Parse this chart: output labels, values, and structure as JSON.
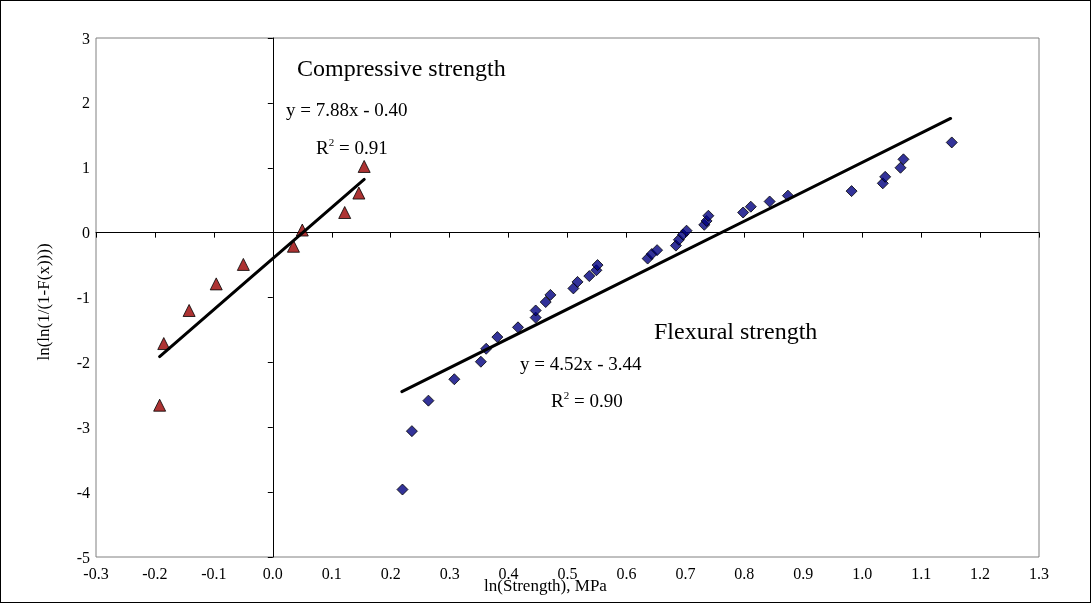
{
  "chart_data": {
    "type": "scatter",
    "xlabel": "ln(Strength), MPa",
    "ylabel": "ln(ln(1/(1-F(x))))",
    "xlim": [
      -0.3,
      1.3
    ],
    "xticks": [
      -0.3,
      -0.2,
      -0.1,
      {
        "value": 0,
        "label": "0.0"
      },
      0.1,
      0.2,
      0.3,
      0.4,
      0.5,
      0.6,
      0.7,
      0.8,
      0.9,
      {
        "value": 1,
        "label": "1.0"
      },
      1.1,
      1.2,
      1.3
    ],
    "ylim": [
      -5,
      3
    ],
    "yticks": [
      -5,
      -4,
      -3,
      -2,
      -1,
      0,
      1,
      2,
      3
    ],
    "series": [
      {
        "marker": "triangle",
        "color": "#990000",
        "x": [
          -0.192,
          -0.185,
          -0.142,
          -0.096,
          -0.05,
          0.035,
          0.05,
          0.122,
          0.146,
          0.155
        ],
        "values": [
          -2.66,
          -1.71,
          -1.2,
          -0.79,
          -0.49,
          -0.21,
          0.04,
          0.31,
          0.61,
          1.02
        ]
      },
      {
        "type": "line",
        "marker": "none",
        "color": "#000000",
        "x": [
          -0.192,
          0.155
        ],
        "values": [
          -1.91,
          0.82
        ]
      },
      {
        "marker": "diamond",
        "color": "#000080",
        "x": [
          0.22,
          0.236,
          0.264,
          0.308,
          0.353,
          0.362,
          0.381,
          0.416,
          0.446,
          0.446,
          0.463,
          0.471,
          0.51,
          0.517,
          0.537,
          0.549,
          0.551,
          0.636,
          0.643,
          0.652,
          0.684,
          0.689,
          0.696,
          0.702,
          0.732,
          0.736,
          0.739,
          0.798,
          0.811,
          0.843,
          0.874,
          0.982,
          1.035,
          1.039,
          1.065,
          1.07,
          1.152
        ],
        "values": [
          -3.96,
          -3.06,
          -2.59,
          -2.26,
          -1.99,
          -1.79,
          -1.61,
          -1.46,
          -1.31,
          -1.2,
          -1.07,
          -0.96,
          -0.86,
          -0.76,
          -0.67,
          -0.58,
          -0.5,
          -0.4,
          -0.33,
          -0.27,
          -0.2,
          -0.11,
          -0.03,
          0.03,
          0.12,
          0.18,
          0.26,
          0.31,
          0.4,
          0.48,
          0.57,
          0.64,
          0.76,
          0.86,
          1.0,
          1.13,
          1.39
        ]
      },
      {
        "type": "line",
        "marker": "none",
        "color": "#000000",
        "x": [
          0.219,
          1.15
        ],
        "values": [
          -2.45,
          1.76
        ]
      }
    ],
    "annotations": [
      "Compressive strength",
      "y = 7.88x - 0.40",
      "R$^{2}$ = 0.91",
      "Flexural strength",
      "y = 4.52x - 3.44",
      "R$^{2}$ = 0.90"
    ]
  }
}
